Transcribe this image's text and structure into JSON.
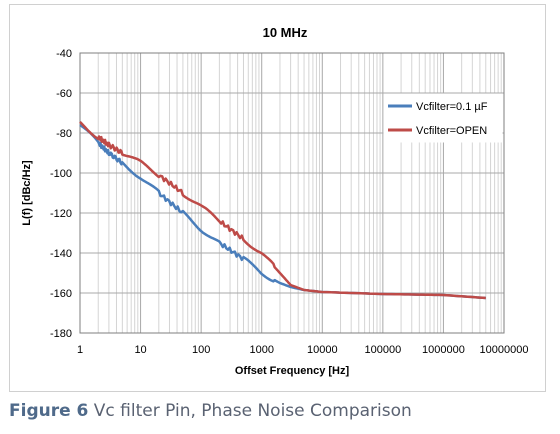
{
  "chart_data": {
    "type": "line",
    "title": "10 MHz",
    "xlabel": "Offset Frequency [Hz]",
    "ylabel": "L(f) [dBc/Hz]",
    "x_scale": "log",
    "xlim": [
      1,
      10000000
    ],
    "ylim": [
      -180,
      -40
    ],
    "x_ticks": [
      1,
      10,
      100,
      1000,
      10000,
      100000,
      1000000,
      10000000
    ],
    "x_tick_labels": [
      "1",
      "10",
      "100",
      "1000",
      "10000",
      "100000",
      "1000000",
      "10000000"
    ],
    "y_ticks": [
      -180,
      -160,
      -140,
      -120,
      -100,
      -80,
      -60,
      -40
    ],
    "y_tick_labels": [
      "-180",
      "-160",
      "-140",
      "-120",
      "-100",
      "-80",
      "-60",
      "-40"
    ],
    "grid": true,
    "legend_position": "top-right",
    "series": [
      {
        "name": "Vcfilter=0.1 µF",
        "color": "#4a7ebb",
        "x": [
          1,
          2,
          3,
          5,
          10,
          20,
          50,
          100,
          200,
          500,
          1000,
          2000,
          3000,
          5000,
          10000,
          100000,
          1000000,
          5000000
        ],
        "y": [
          -76,
          -85,
          -90,
          -95,
          -102,
          -110,
          -120,
          -128,
          -135,
          -143,
          -150,
          -155,
          -157,
          -158.5,
          -159.5,
          -160.5,
          -161,
          -162.5
        ]
      },
      {
        "name": "Vcfilter=OPEN",
        "color": "#be4b48",
        "x": [
          1,
          2,
          3,
          5,
          10,
          20,
          50,
          100,
          200,
          500,
          1000,
          2000,
          3000,
          5000,
          10000,
          100000,
          1000000,
          5000000
        ],
        "y": [
          -75,
          -82,
          -86,
          -90,
          -95,
          -101,
          -110,
          -117,
          -124,
          -133,
          -140,
          -150,
          -156,
          -158.5,
          -159.5,
          -160.5,
          -161,
          -162.5
        ]
      }
    ]
  },
  "caption": {
    "figure_label": "Figure 6",
    "text": " Vc filter Pin, Phase Noise Comparison"
  }
}
